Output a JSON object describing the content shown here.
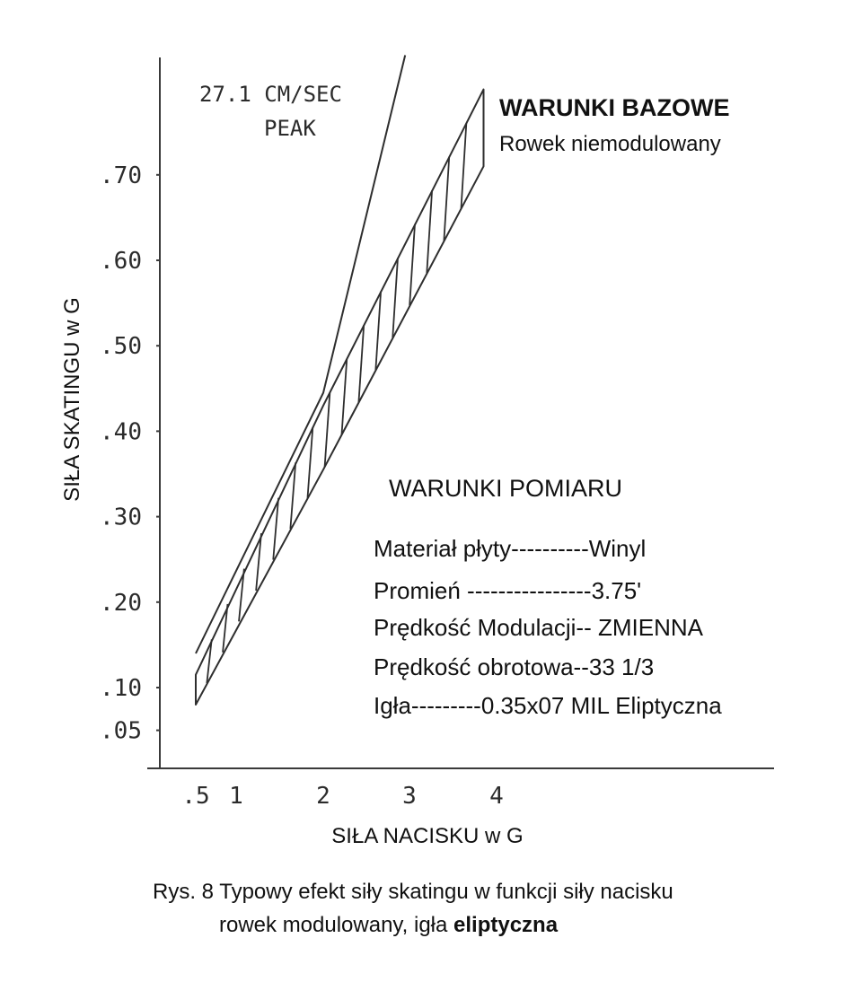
{
  "chart_data": {
    "type": "line",
    "title": "WARUNKI BAZOWE",
    "subtitle": "Rowek niemodulowany",
    "xlabel": "SIŁA NACISKU w G",
    "ylabel": "SIŁA SKATINGU w G",
    "xlim": [
      0.5,
      4.2
    ],
    "ylim": [
      0.05,
      0.8
    ],
    "x_ticks": [
      {
        "value": 0.5,
        "label": ".5"
      },
      {
        "value": 1,
        "label": "1"
      },
      {
        "value": 2,
        "label": "2"
      },
      {
        "value": 3,
        "label": "3"
      },
      {
        "value": 4,
        "label": "4"
      }
    ],
    "y_ticks": [
      {
        "value": 0.05,
        "label": ".05"
      },
      {
        "value": 0.1,
        "label": ".10"
      },
      {
        "value": 0.2,
        "label": ".20"
      },
      {
        "value": 0.3,
        "label": ".30"
      },
      {
        "value": 0.4,
        "label": ".40"
      },
      {
        "value": 0.5,
        "label": ".50"
      },
      {
        "value": 0.6,
        "label": ".60"
      },
      {
        "value": 0.7,
        "label": ".70"
      }
    ],
    "grid": false,
    "series": [
      {
        "name": "27.1 CM/SEC PEAK",
        "style": "line",
        "points": [
          [
            0.5,
            0.14
          ],
          [
            2.0,
            0.445
          ],
          [
            2.95,
            0.84
          ]
        ]
      },
      {
        "style": "hatched-band",
        "upper": [
          [
            0.5,
            0.115
          ],
          [
            2.0,
            0.43
          ],
          [
            3.85,
            0.8
          ]
        ],
        "lower": [
          [
            0.5,
            0.08
          ],
          [
            2.0,
            0.355
          ],
          [
            3.85,
            0.71
          ]
        ]
      }
    ],
    "annotations": [
      {
        "text_lines": [
          "27.1 CM/SEC",
          "PEAK"
        ]
      }
    ],
    "conditions": {
      "title": "WARUNKI POMIARU",
      "rows": [
        "Materiał płyty----------Winyl",
        "Promień ----------------3.75'",
        "Prędkość Modulacji-- ZMIENNA",
        "Prędkość obrotowa--33 1/3",
        "Igła---------0.35x07 MIL Eliptyczna"
      ]
    },
    "caption": {
      "line1": "Rys. 8 Typowy efekt siły skatingu w funkcji siły nacisku",
      "line2_normal": "rowek modulowany, igła ",
      "line2_bold": "eliptyczna"
    }
  }
}
